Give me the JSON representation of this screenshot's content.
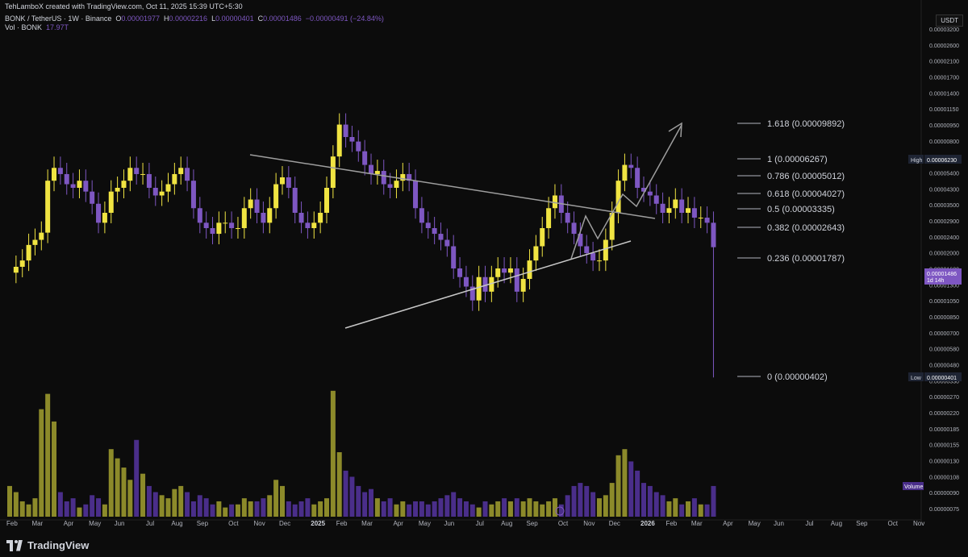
{
  "header": {
    "created_line": "TehLamboX created with TradingView.com, Oct 11, 2025 15:39 UTC+5:30",
    "symbol": "BONK / TetherUS · 1W · Binance",
    "o_label": "O",
    "o_value": "0.00001977",
    "h_label": "H",
    "h_value": "0.00002216",
    "l_label": "L",
    "l_value": "0.00000401",
    "c_label": "C",
    "c_value": "0.00001486",
    "change": "−0.00000491 (−24.84%)",
    "vol_label": "Vol · BONK",
    "vol_value": "17.97T"
  },
  "currency_button": "USDT",
  "branding": "TradingView",
  "colors": {
    "bull": "#f0e442",
    "bear": "#7e57c2",
    "vol_bull": "#8c8a2a",
    "vol_bear": "#4a2e8a",
    "bg": "#0c0c0c",
    "line": "#9e9e9e"
  },
  "chart_data": {
    "type": "candlestick",
    "x_axis_labels": [
      "Feb",
      "Mar",
      "Apr",
      "May",
      "Jun",
      "Jul",
      "Aug",
      "Sep",
      "Oct",
      "Nov",
      "Dec",
      "2025",
      "Feb",
      "Mar",
      "Apr",
      "May",
      "Jun",
      "Jul",
      "Aug",
      "Sep",
      "Oct",
      "Nov",
      "Dec",
      "2026",
      "Feb",
      "Mar",
      "Apr",
      "May",
      "Jun",
      "Jul",
      "Aug",
      "Sep",
      "Oct",
      "Nov"
    ],
    "x_axis_weeks": [
      0,
      4,
      9,
      13,
      17,
      22,
      26,
      30,
      35,
      39,
      43,
      48,
      52,
      56,
      61,
      65,
      69,
      74,
      78,
      82,
      87,
      91,
      95,
      100,
      104,
      108,
      113,
      117,
      121,
      126,
      130,
      134,
      139,
      143
    ],
    "price_axis_labels": [
      "0.00003200",
      "0.00002600",
      "0.00002100",
      "0.00001700",
      "0.00001400",
      "0.00001150",
      "0.00000950",
      "0.00000800",
      "0.00006500",
      "0.00005400",
      "0.00004300",
      "0.00003500",
      "0.00002900",
      "0.00002400",
      "0.00002000",
      "0.00001600",
      "0.00001300",
      "0.00001050",
      "0.00000850",
      "0.00000700",
      "0.00000580",
      "0.00000480",
      "0.00000330",
      "0.00000270",
      "0.00000220",
      "0.00000185",
      "0.00000155",
      "0.00000130",
      "0.00000108",
      "0.00000090",
      "0.00000075"
    ],
    "fib_levels": [
      {
        "label": "1.618 (0.00009892)",
        "value": 9.892e-05
      },
      {
        "label": "1 (0.00006267)",
        "value": 6.267e-05
      },
      {
        "label": "0.786 (0.00005012)",
        "value": 5.012e-05
      },
      {
        "label": "0.618 (0.00004027)",
        "value": 4.027e-05
      },
      {
        "label": "0.5 (0.00003335)",
        "value": 3.335e-05
      },
      {
        "label": "0.382 (0.00002643)",
        "value": 2.643e-05
      },
      {
        "label": "0.236 (0.00001787)",
        "value": 1.787e-05
      },
      {
        "label": "0 (0.00000402)",
        "value": 4.02e-06
      }
    ],
    "high_marker": {
      "label": "High",
      "value": "0.00006230"
    },
    "low_marker": {
      "label": "Low",
      "value": "0.00000401"
    },
    "last_price": {
      "value": "0.00001486",
      "countdown": "1d 14h"
    },
    "volume_label": "Volume",
    "price_series": [
      1.15e-05,
      1.22e-05,
      1.3e-05,
      1.52e-05,
      1.6e-05,
      1.72e-05,
      2.9e-05,
      3.3e-05,
      3.1e-05,
      2.8e-05,
      2.7e-05,
      2.9e-05,
      2.6e-05,
      2.3e-05,
      1.9e-05,
      2.1e-05,
      2.6e-05,
      2.7e-05,
      2.9e-05,
      3.3e-05,
      3.1e-05,
      3.1e-05,
      2.7e-05,
      2.5e-05,
      2.6e-05,
      2.8e-05,
      3.1e-05,
      3.3e-05,
      2.9e-05,
      2.2e-05,
      1.9e-05,
      1.8e-05,
      1.7e-05,
      1.9e-05,
      1.9e-05,
      1.8e-05,
      1.8e-05,
      2.2e-05,
      2.4e-05,
      2.1e-05,
      1.9e-05,
      2.2e-05,
      2.8e-05,
      3e-05,
      2.7e-05,
      2.1e-05,
      1.9e-05,
      1.8e-05,
      1.9e-05,
      2.1e-05,
      2.7e-05,
      3.7e-05,
      5.1e-05,
      4.5e-05,
      4.3e-05,
      3.9e-05,
      3.4e-05,
      3.1e-05,
      3.2e-05,
      2.8e-05,
      2.7e-05,
      2.9e-05,
      3.1e-05,
      2.9e-05,
      2.2e-05,
      1.9e-05,
      1.8e-05,
      1.7e-05,
      1.6e-05,
      1.5e-05,
      1.2e-05,
      1.1e-05,
      1e-05,
      8.7e-06,
      1.1e-05,
      9.5e-06,
      1.1e-05,
      1.2e-05,
      1.15e-05,
      1.2e-05,
      9.5e-06,
      1.08e-05,
      1.3e-05,
      1.5e-05,
      1.8e-05,
      2.2e-05,
      2.5e-05,
      2.1e-05,
      1.9e-05,
      1.7e-05,
      1.5e-05,
      1.4e-05,
      1.3e-05,
      1.3e-05,
      1.6e-05,
      2.1e-05,
      2.9e-05,
      3.4e-05,
      3.3e-05,
      2.7e-05,
      2.6e-05,
      2.5e-05,
      2.3e-05,
      2.1e-05,
      2.2e-05,
      2.4e-05,
      2.1e-05,
      2.2e-05,
      2e-05,
      2e-05,
      1.9e-05,
      1.486e-05
    ],
    "volume_series": [
      1.0,
      0.8,
      0.5,
      0.4,
      0.6,
      3.5,
      4.0,
      3.1,
      0.8,
      0.5,
      0.6,
      0.3,
      0.4,
      0.7,
      0.6,
      0.4,
      2.2,
      1.9,
      1.6,
      1.2,
      2.5,
      1.4,
      1.0,
      0.8,
      0.7,
      0.6,
      0.9,
      1.0,
      0.8,
      0.5,
      0.7,
      0.6,
      0.4,
      0.5,
      0.3,
      0.4,
      0.4,
      0.6,
      0.5,
      0.5,
      0.6,
      0.7,
      1.2,
      1.0,
      0.5,
      0.4,
      0.5,
      0.6,
      0.4,
      0.5,
      0.6,
      4.1,
      2.1,
      1.5,
      1.3,
      1.0,
      0.8,
      0.9,
      0.6,
      0.5,
      0.6,
      0.4,
      0.5,
      0.4,
      0.5,
      0.5,
      0.4,
      0.5,
      0.6,
      0.7,
      0.8,
      0.6,
      0.5,
      0.4,
      0.3,
      0.5,
      0.4,
      0.5,
      0.6,
      0.5,
      0.6,
      0.5,
      0.6,
      0.5,
      0.4,
      0.5,
      0.6,
      0.4,
      0.7,
      1.0,
      1.1,
      1.0,
      0.8,
      0.6,
      0.7,
      1.1,
      2.0,
      2.2,
      1.8,
      1.5,
      1.1,
      1.0,
      0.8,
      0.7,
      0.5,
      0.6,
      0.4,
      0.5,
      0.6,
      0.4,
      0.4,
      1.0
    ]
  }
}
